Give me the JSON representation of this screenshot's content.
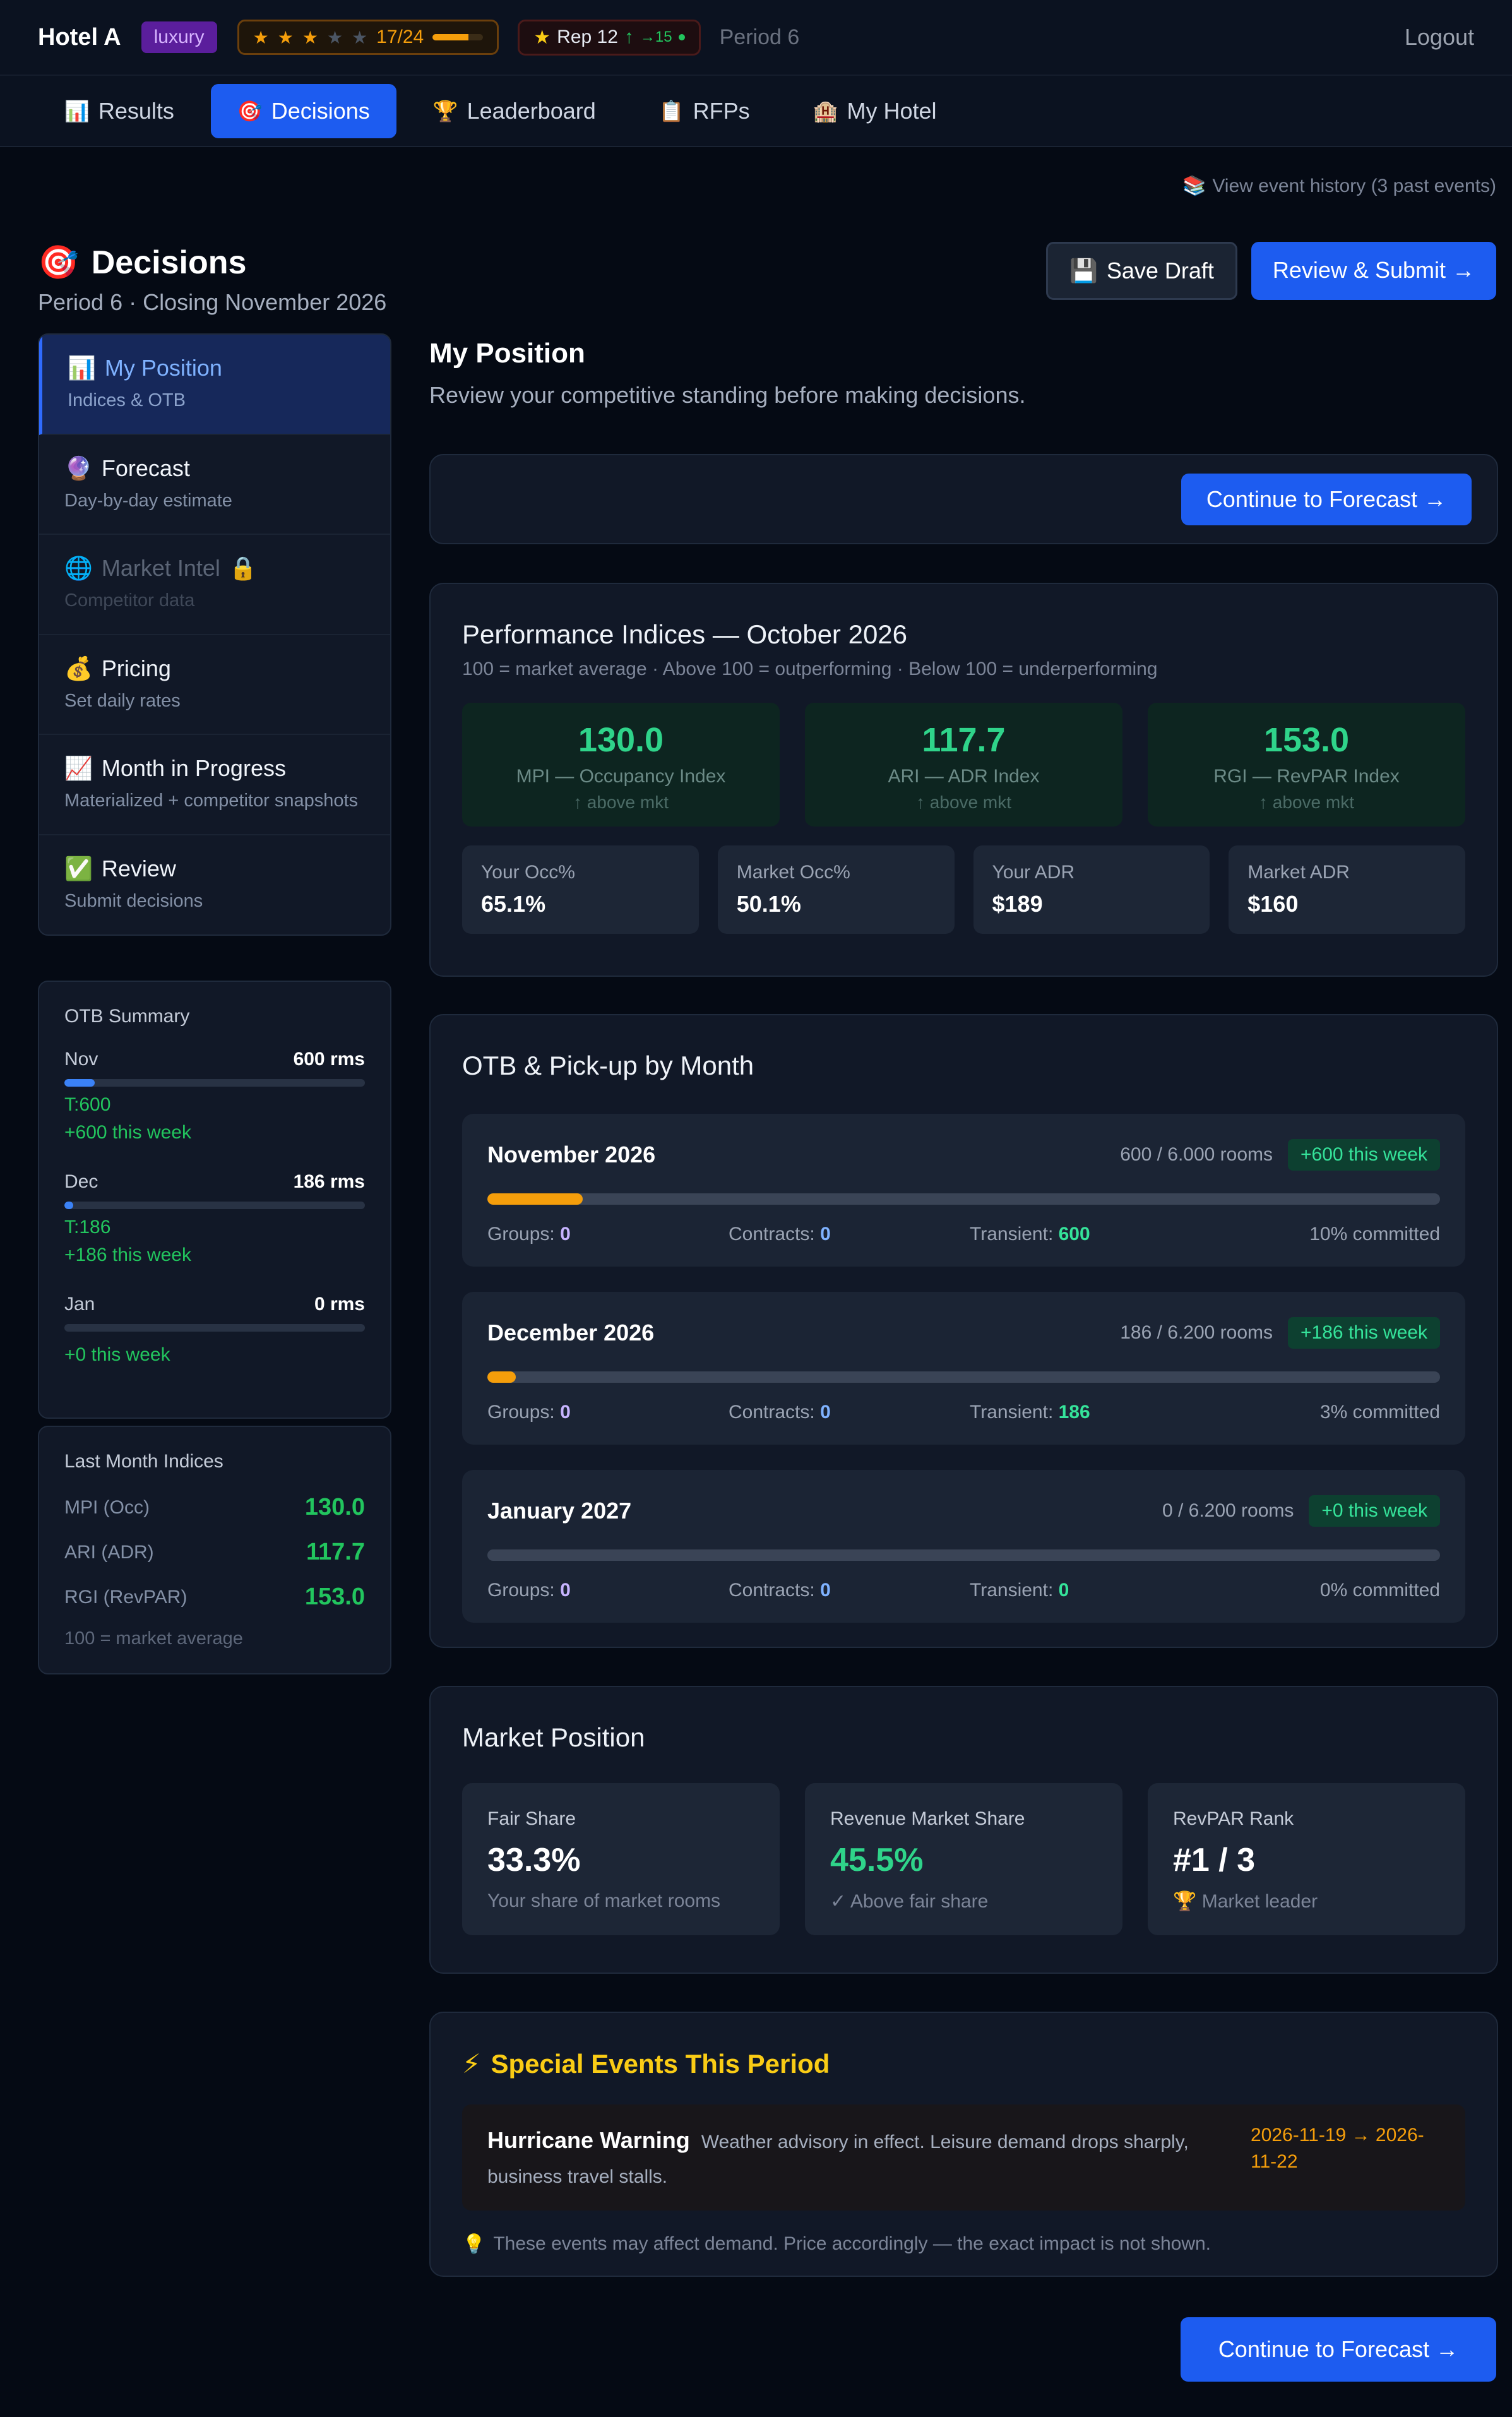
{
  "header": {
    "hotel_name": "Hotel A",
    "tier": "luxury",
    "stars": {
      "filled": 3,
      "total": 5,
      "text": "17/24",
      "progress": 0.71
    },
    "rep": {
      "label": "Rep 12",
      "arrow": "↑",
      "delta": "→15"
    },
    "period": "Period 6",
    "logout": "Logout"
  },
  "nav": [
    {
      "icon": "📊",
      "label": "Results",
      "active": false
    },
    {
      "icon": "🎯",
      "label": "Decisions",
      "active": true
    },
    {
      "icon": "🏆",
      "label": "Leaderboard",
      "active": false
    },
    {
      "icon": "📋",
      "label": "RFPs",
      "active": false
    },
    {
      "icon": "🏨",
      "label": "My Hotel",
      "active": false
    }
  ],
  "event_history": {
    "icon": "📚",
    "label": "View event history (3 past events)"
  },
  "page": {
    "icon": "🎯",
    "title": "Decisions",
    "subtitle": "Period 6 · Closing November 2026",
    "save_draft": {
      "icon": "💾",
      "label": "Save Draft"
    },
    "review_submit": "Review & Submit →"
  },
  "sidebar": {
    "items": [
      {
        "icon": "📊",
        "label": "My Position",
        "sub": "Indices & OTB",
        "active": true
      },
      {
        "icon": "🔮",
        "label": "Forecast",
        "sub": "Day-by-day estimate"
      },
      {
        "icon": "🌐",
        "label": "Market Intel",
        "lock": "🔒",
        "sub": "Competitor data",
        "disabled": true
      },
      {
        "icon": "💰",
        "label": "Pricing",
        "sub": "Set daily rates"
      },
      {
        "icon": "📈",
        "label": "Month in Progress",
        "sub": "Materialized + competitor snapshots"
      },
      {
        "icon": "✅",
        "label": "Review",
        "sub": "Submit decisions"
      }
    ]
  },
  "otb_summary": {
    "title": "OTB Summary",
    "rows": [
      {
        "month": "Nov",
        "rooms": "600 rms",
        "fill": 0.1,
        "t": "T:600",
        "week": "+600 this week"
      },
      {
        "month": "Dec",
        "rooms": "186 rms",
        "fill": 0.03,
        "t": "T:186",
        "week": "+186 this week"
      },
      {
        "month": "Jan",
        "rooms": "0 rms",
        "fill": 0,
        "t": "",
        "week": "+0 this week"
      }
    ]
  },
  "last_month": {
    "title": "Last Month Indices",
    "rows": [
      {
        "label": "MPI (Occ)",
        "value": "130.0"
      },
      {
        "label": "ARI (ADR)",
        "value": "117.7"
      },
      {
        "label": "RGI (RevPAR)",
        "value": "153.0"
      }
    ],
    "note": "100 = market average"
  },
  "my_position": {
    "title": "My Position",
    "subtitle": "Review your competitive standing before making decisions.",
    "continue": "Continue to Forecast →"
  },
  "indices": {
    "title": "Performance Indices — October 2026",
    "subtitle": "100 = market average · Above 100 = outperforming · Below 100 = underperforming",
    "tiles": [
      {
        "value": "130.0",
        "name": "MPI — Occupancy Index",
        "status": "↑ above mkt"
      },
      {
        "value": "117.7",
        "name": "ARI — ADR Index",
        "status": "↑ above mkt"
      },
      {
        "value": "153.0",
        "name": "RGI — RevPAR Index",
        "status": "↑ above mkt"
      }
    ],
    "stats": [
      {
        "label": "Your Occ%",
        "value": "65.1%"
      },
      {
        "label": "Market Occ%",
        "value": "50.1%"
      },
      {
        "label": "Your ADR",
        "value": "$189"
      },
      {
        "label": "Market ADR",
        "value": "$160"
      }
    ]
  },
  "otb_month": {
    "title": "OTB & Pick-up by Month",
    "groups_label": "Groups:",
    "contracts_label": "Contracts:",
    "transient_label": "Transient:",
    "months": [
      {
        "name": "November 2026",
        "rooms": "600 / 6.000 rooms",
        "week": "+600 this week",
        "fill": 0.1,
        "groups": "0",
        "contracts": "0",
        "transient": "600",
        "committed": "10% committed"
      },
      {
        "name": "December 2026",
        "rooms": "186 / 6.200 rooms",
        "week": "+186 this week",
        "fill": 0.03,
        "groups": "0",
        "contracts": "0",
        "transient": "186",
        "committed": "3% committed"
      },
      {
        "name": "January 2027",
        "rooms": "0 / 6.200 rooms",
        "week": "+0 this week",
        "fill": 0,
        "groups": "0",
        "contracts": "0",
        "transient": "0",
        "committed": "0% committed"
      }
    ]
  },
  "market_position": {
    "title": "Market Position",
    "tiles": [
      {
        "label": "Fair Share",
        "value": "33.3%",
        "note": "Your share of market rooms"
      },
      {
        "label": "Revenue Market Share",
        "value": "45.5%",
        "note": "✓ Above fair share"
      },
      {
        "label": "RevPAR Rank",
        "value": "#1 / 3",
        "note": "🏆 Market leader"
      }
    ]
  },
  "events": {
    "icon": "⚡",
    "title": "Special Events This Period",
    "items": [
      {
        "name": "Hurricane Warning",
        "desc": "Weather advisory in effect. Leisure demand drops sharply, business travel stalls.",
        "dates": "2026-11-19 → 2026-11-22"
      }
    ],
    "note_icon": "💡",
    "note": "These events may affect demand. Price accordingly — the exact impact is not shown."
  },
  "bottom_continue": "Continue to Forecast →"
}
